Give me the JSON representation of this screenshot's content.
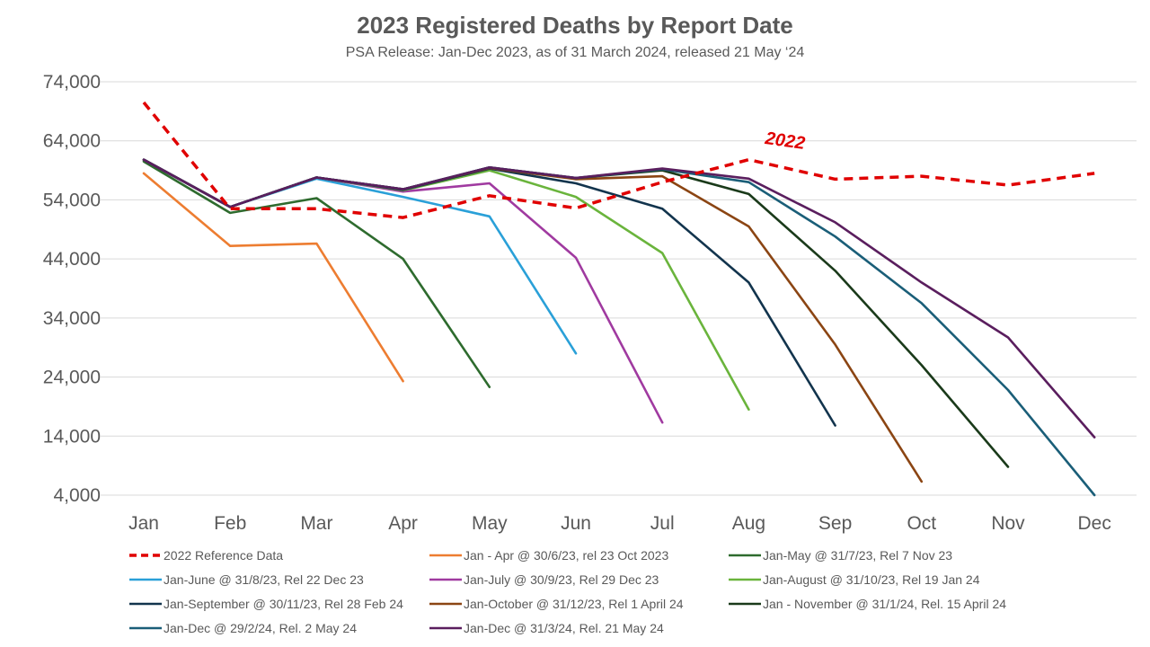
{
  "chart_data": {
    "type": "line",
    "title": "2023 Registered Deaths by Report Date",
    "subtitle": "PSA Release: Jan-Dec 2023, as of 31 March 2024, released 21 May ‘24",
    "categories": [
      "Jan",
      "Feb",
      "Mar",
      "Apr",
      "May",
      "Jun",
      "Jul",
      "Aug",
      "Sep",
      "Oct",
      "Nov",
      "Dec"
    ],
    "ylim": [
      4000,
      74000
    ],
    "yticks": [
      "4,000",
      "14,000",
      "24,000",
      "34,000",
      "44,000",
      "54,000",
      "64,000",
      "74,000"
    ],
    "ytick_values": [
      4000,
      14000,
      24000,
      34000,
      44000,
      54000,
      64000,
      74000
    ],
    "grid": true,
    "legend_position": "bottom",
    "annotation": "2022",
    "series": [
      {
        "name": "2022 Reference Data",
        "color": "#e00000",
        "dashed": true,
        "values": [
          70500,
          52500,
          52500,
          51000,
          54700,
          52600,
          57000,
          60800,
          57500,
          58000,
          56500,
          58500
        ]
      },
      {
        "name": "Jan - Apr @ 30/6/23, rel 23 Oct 2023",
        "color": "#ed7d31",
        "dashed": false,
        "values": [
          58500,
          46200,
          46600,
          23300,
          null,
          null,
          null,
          null,
          null,
          null,
          null,
          null
        ]
      },
      {
        "name": "Jan-May @ 31/7/23, Rel 7 Nov 23",
        "color": "#2e6b2e",
        "dashed": false,
        "values": [
          60500,
          51800,
          54300,
          44000,
          22300,
          null,
          null,
          null,
          null,
          null,
          null,
          null
        ]
      },
      {
        "name": "Jan-June @ 31/8/23, Rel 22 Dec 23",
        "color": "#2aa0d8",
        "dashed": false,
        "values": [
          60800,
          52800,
          57600,
          54500,
          51200,
          28000,
          null,
          null,
          null,
          null,
          null,
          null
        ]
      },
      {
        "name": "Jan-July @ 30/9/23, Rel 29 Dec 23",
        "color": "#a03aa0",
        "dashed": false,
        "values": [
          60800,
          52800,
          57800,
          55400,
          56800,
          44200,
          16300,
          null,
          null,
          null,
          null,
          null
        ]
      },
      {
        "name": "Jan-August @ 31/10/23, Rel 19 Jan 24",
        "color": "#6ab43c",
        "dashed": false,
        "values": [
          60800,
          52800,
          57800,
          55600,
          59000,
          54500,
          45000,
          18500,
          null,
          null,
          null,
          null
        ]
      },
      {
        "name": "Jan-September @ 30/11/23, Rel 28 Feb 24",
        "color": "#12344d",
        "dashed": false,
        "values": [
          60800,
          52800,
          57800,
          55700,
          59300,
          56800,
          52500,
          40000,
          15800,
          null,
          null,
          null
        ]
      },
      {
        "name": "Jan-October @ 31/12/23, Rel 1 April 24",
        "color": "#8b4513",
        "dashed": false,
        "values": [
          60800,
          52800,
          57800,
          55800,
          59400,
          57500,
          58000,
          49500,
          29500,
          6300,
          null,
          null
        ]
      },
      {
        "name": "Jan - November @ 31/1/24, Rel. 15 April 24",
        "color": "#1a3a1a",
        "dashed": false,
        "values": [
          60800,
          52800,
          57800,
          55800,
          59500,
          57700,
          59000,
          55000,
          42000,
          26000,
          8800,
          null
        ]
      },
      {
        "name": "Jan-Dec @ 29/2/24, Rel. 2 May 24",
        "color": "#1a5e78",
        "dashed": false,
        "values": [
          60800,
          52800,
          57800,
          55800,
          59500,
          57700,
          59200,
          57000,
          47800,
          36500,
          21800,
          4000
        ]
      },
      {
        "name": "Jan-Dec @ 31/3/24, Rel. 21 May 24",
        "color": "#5a1e5e",
        "dashed": false,
        "values": [
          60800,
          52800,
          57800,
          55800,
          59500,
          57700,
          59300,
          57600,
          50200,
          40000,
          30700,
          13800
        ]
      }
    ]
  }
}
